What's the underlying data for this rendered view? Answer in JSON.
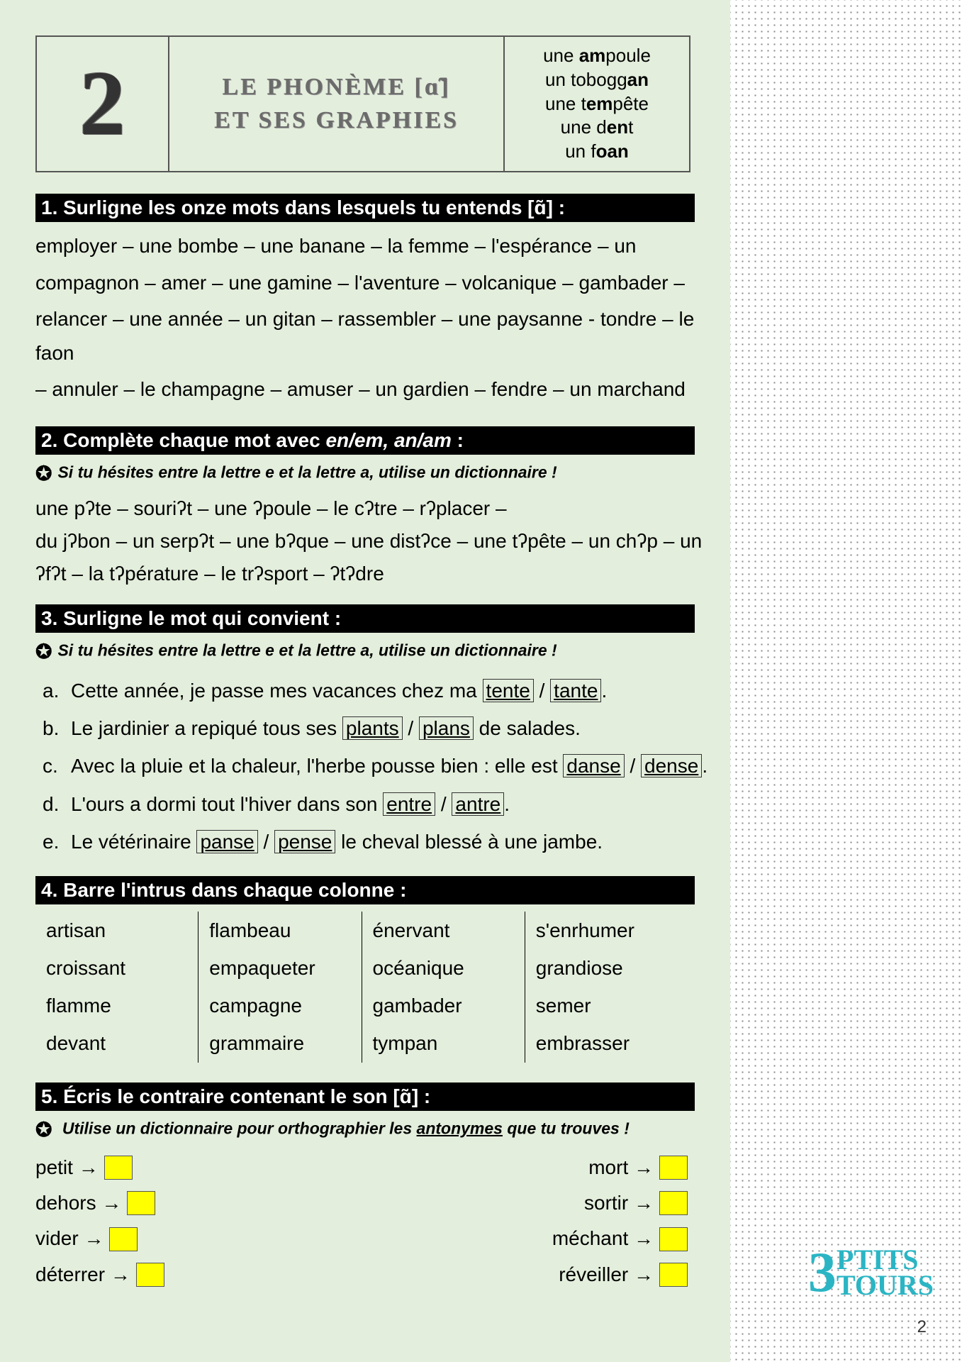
{
  "colors": {
    "page_bg": "#e3eedc",
    "header_bg": "#000000",
    "header_fg": "#ffffff",
    "yellow": "#ffff00",
    "logo": "#2bb5c4"
  },
  "lesson_number": "2",
  "title_line1": "LE PHONÈME [ɑ̃]",
  "title_line2": "ET SES GRAPHIES",
  "examples": [
    {
      "pre": "une ",
      "b": "am",
      "post": "poule"
    },
    {
      "pre": "un tobogg",
      "b": "an",
      "post": ""
    },
    {
      "pre": "une t",
      "b": "em",
      "post": "pête"
    },
    {
      "pre": "une d",
      "b": "en",
      "post": "t"
    },
    {
      "pre": "un f",
      "b": "oan",
      "post": ""
    }
  ],
  "ex1": {
    "header": "1.  Surligne les onze mots dans lesquels tu entends [ɑ̃] :",
    "lines": [
      "employer – une bombe – une banane – la femme – l'espérance – un",
      "compagnon – amer – une gamine – l'aventure – volcanique – gambader –",
      "relancer – une année – un gitan – rassembler – une paysanne - tondre – le faon",
      "– annuler – le champagne – amuser – un gardien – fendre – un marchand"
    ]
  },
  "ex2": {
    "header": "2.  Complète chaque mot avec en/em, an/am :",
    "tip": "Si tu hésites entre la lettre e et la lettre a, utilise un dictionnaire !",
    "lines": [
      "une pʔte – souriʔt – une ʔpoule – le cʔtre – rʔplacer –",
      "du jʔbon – un serpʔt – une bʔque – une distʔce – une tʔpête – un chʔp – un",
      "ʔfʔt – la tʔpérature – le trʔsport – ʔtʔdre"
    ]
  },
  "ex3": {
    "header": "3.  Surligne le mot qui convient :",
    "tip": "Si tu hésites entre la lettre e et la lettre a, utilise un dictionnaire !",
    "items": [
      {
        "m": "a.",
        "pre": "Cette année, je passe mes vacances chez ma ",
        "o1": "tente",
        "o2": "tante",
        "post": "."
      },
      {
        "m": "b.",
        "pre": "Le jardinier a repiqué tous ses ",
        "o1": "plants",
        "o2": "plans",
        "post": " de salades."
      },
      {
        "m": "c.",
        "pre": "Avec la pluie et la chaleur, l'herbe pousse bien : elle est ",
        "o1": "danse",
        "o2": "dense",
        "post": "."
      },
      {
        "m": "d.",
        "pre": "L'ours a dormi tout l'hiver dans son ",
        "o1": "entre",
        "o2": "antre",
        "post": "."
      },
      {
        "m": "e.",
        "pre": "Le vétérinaire ",
        "o1": "panse",
        "o2": "pense",
        "post": " le cheval blessé à une jambe."
      }
    ]
  },
  "ex4": {
    "header": "4.  Barre l'intrus dans chaque colonne :",
    "columns": [
      [
        "artisan",
        "croissant",
        "flamme",
        "devant"
      ],
      [
        "flambeau",
        "empaqueter",
        "campagne",
        "grammaire"
      ],
      [
        "énervant",
        "océanique",
        "gambader",
        "tympan"
      ],
      [
        "s'enrhumer",
        "grandiose",
        "semer",
        "embrasser"
      ]
    ]
  },
  "ex5": {
    "header": "5.  Écris le contraire contenant le son [ɑ̃] :",
    "tip_pre": "Utilise un dictionnaire pour orthographier les ",
    "tip_u": "antonymes",
    "tip_post": " que tu trouves !",
    "left": [
      "petit",
      "dehors",
      "vider",
      "déterrer"
    ],
    "right": [
      "mort",
      "sortir",
      "méchant",
      "réveiller"
    ]
  },
  "logo": {
    "three": "3",
    "l1": "PTITS",
    "l2": "TOURS"
  },
  "page_number": "2"
}
